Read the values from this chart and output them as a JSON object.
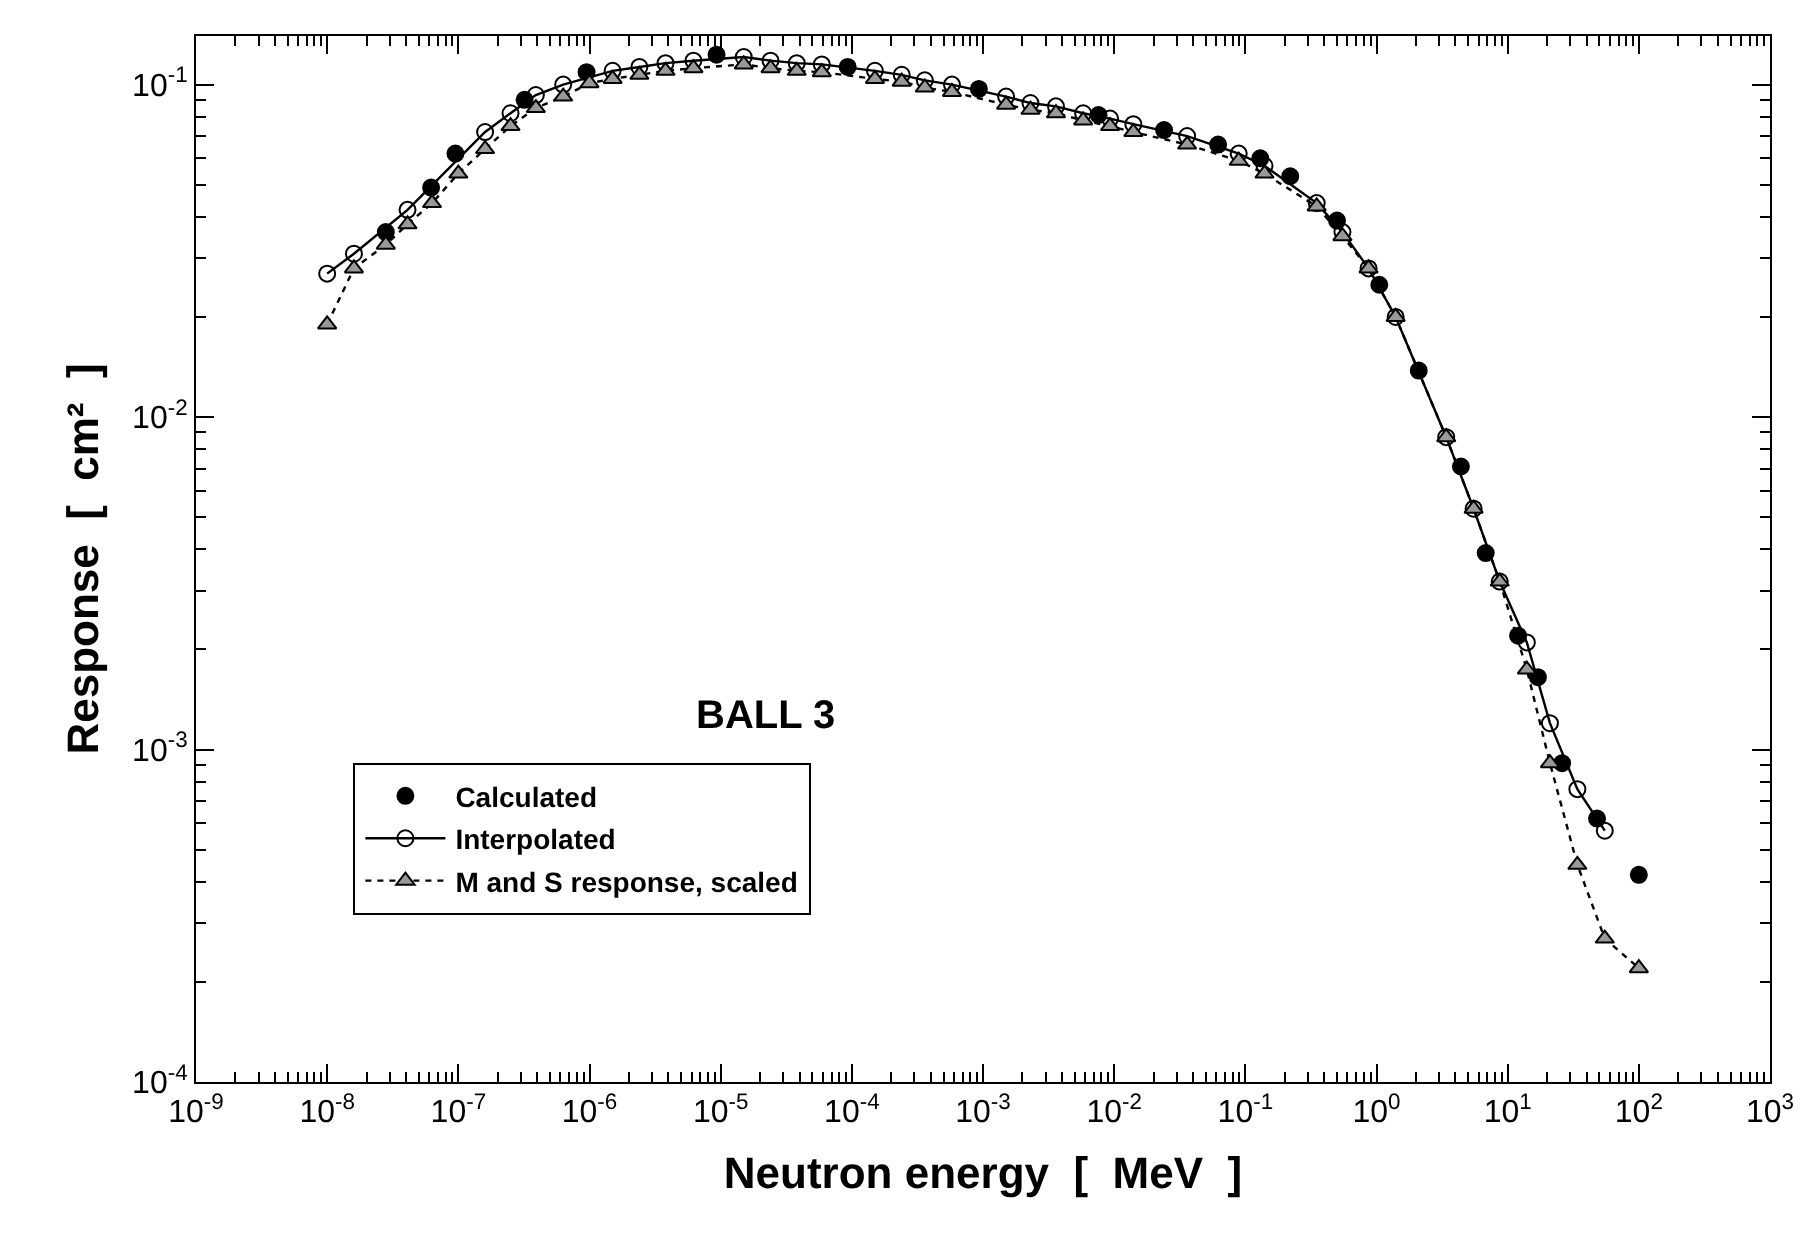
{
  "chart_data": {
    "type": "line",
    "xlabel": "Neutron energy  [  MeV  ]",
    "ylabel": "Response  [  cm²  ]",
    "annotations": [
      "BALL 3"
    ],
    "log": "xy",
    "xlim": [
      1e-09,
      1000
    ],
    "ylim": [
      0.0001,
      0.14
    ],
    "xticks": [
      {
        "value": 1e-09,
        "label": "10$^{-9}$"
      },
      {
        "value": 1e-08,
        "label": "10$^{-8}$"
      },
      {
        "value": 1e-07,
        "label": "10$^{-7}$"
      },
      {
        "value": 1e-06,
        "label": "10$^{-6}$"
      },
      {
        "value": 1e-05,
        "label": "10$^{-5}$"
      },
      {
        "value": 0.0001,
        "label": "10$^{-4}$"
      },
      {
        "value": 0.001,
        "label": "10$^{-3}$"
      },
      {
        "value": 0.01,
        "label": "10$^{-2}$"
      },
      {
        "value": 0.1,
        "label": "10$^{-1}$"
      },
      {
        "value": 1,
        "label": "10$^{0}$"
      },
      {
        "value": 10,
        "label": "10$^{1}$"
      },
      {
        "value": 100,
        "label": "10$^{2}$"
      },
      {
        "value": 1000,
        "label": "10$^{3}$"
      }
    ],
    "yticks": [
      {
        "value": 0.0001,
        "label": "10$^{-4}$"
      },
      {
        "value": 0.001,
        "label": "10$^{-3}$"
      },
      {
        "value": 0.01,
        "label": "10$^{-2}$"
      },
      {
        "value": 0.1,
        "label": "10$^{-1}$"
      }
    ],
    "grid": false,
    "legend": "bottom left",
    "series": [
      {
        "name": "Calculated",
        "type": "scatter",
        "marker": "circle",
        "color": "#000000",
        "x": [
          2.8e-08,
          6.2e-08,
          9.5e-08,
          3.2e-07,
          9.5e-07,
          9.3e-06,
          9.3e-05,
          0.00093,
          0.0076,
          0.024,
          0.062,
          0.13,
          0.22,
          0.5,
          1.05,
          2.1,
          4.4,
          6.8,
          12,
          17,
          26,
          48,
          100
        ],
        "values": [
          0.036,
          0.049,
          0.062,
          0.09,
          0.109,
          0.123,
          0.113,
          0.097,
          0.081,
          0.073,
          0.066,
          0.06,
          0.053,
          0.039,
          0.025,
          0.0138,
          0.0071,
          0.0039,
          0.0022,
          0.00165,
          0.00091,
          0.00062,
          0.00042
        ]
      },
      {
        "name": "Interpolated",
        "marker": "circle-open",
        "line_style": "solid",
        "color": "#000000",
        "x": [
          1e-08,
          1.6e-08,
          4.1e-08,
          1.6e-07,
          2.5e-07,
          3.9e-07,
          6.3e-07,
          1.5e-06,
          2.4e-06,
          3.8e-06,
          6.2e-06,
          1.5e-05,
          2.4e-05,
          3.8e-05,
          5.9e-05,
          0.00015,
          0.00024,
          0.00036,
          0.00058,
          0.0015,
          0.0023,
          0.0036,
          0.0058,
          0.0093,
          0.014,
          0.036,
          0.089,
          0.14,
          0.35,
          0.55,
          0.87,
          1.4,
          3.4,
          5.5,
          8.7,
          14,
          21,
          34,
          55
        ],
        "values": [
          0.027,
          0.031,
          0.042,
          0.072,
          0.082,
          0.093,
          0.1,
          0.11,
          0.113,
          0.116,
          0.118,
          0.121,
          0.118,
          0.116,
          0.115,
          0.11,
          0.107,
          0.103,
          0.1,
          0.092,
          0.088,
          0.086,
          0.082,
          0.079,
          0.076,
          0.07,
          0.062,
          0.057,
          0.044,
          0.036,
          0.028,
          0.02,
          0.0087,
          0.0053,
          0.0032,
          0.0021,
          0.0012,
          0.00076,
          0.00057
        ]
      },
      {
        "name": "M and S response, scaled",
        "marker": "triangle",
        "line_style": "dotted",
        "color": "#000000",
        "x": [
          1e-08,
          1.6e-08,
          2.8e-08,
          4.1e-08,
          6.3e-08,
          1e-07,
          1.6e-07,
          2.5e-07,
          3.9e-07,
          6.3e-07,
          1e-06,
          1.5e-06,
          2.4e-06,
          3.8e-06,
          6.2e-06,
          1.5e-05,
          2.4e-05,
          3.8e-05,
          5.9e-05,
          0.00015,
          0.00024,
          0.00036,
          0.00058,
          0.0015,
          0.0023,
          0.0036,
          0.0058,
          0.0093,
          0.014,
          0.036,
          0.089,
          0.14,
          0.35,
          0.55,
          0.87,
          1.4,
          3.4,
          5.5,
          8.7,
          14,
          21,
          34,
          55,
          100
        ],
        "values": [
          0.019,
          0.028,
          0.033,
          0.038,
          0.044,
          0.054,
          0.064,
          0.075,
          0.085,
          0.092,
          0.101,
          0.104,
          0.107,
          0.11,
          0.112,
          0.115,
          0.112,
          0.11,
          0.109,
          0.104,
          0.102,
          0.098,
          0.095,
          0.087,
          0.084,
          0.082,
          0.078,
          0.075,
          0.072,
          0.066,
          0.059,
          0.054,
          0.043,
          0.035,
          0.028,
          0.02,
          0.0087,
          0.0053,
          0.0032,
          0.00174,
          0.00091,
          0.00045,
          0.00027,
          0.00022
        ]
      }
    ]
  }
}
